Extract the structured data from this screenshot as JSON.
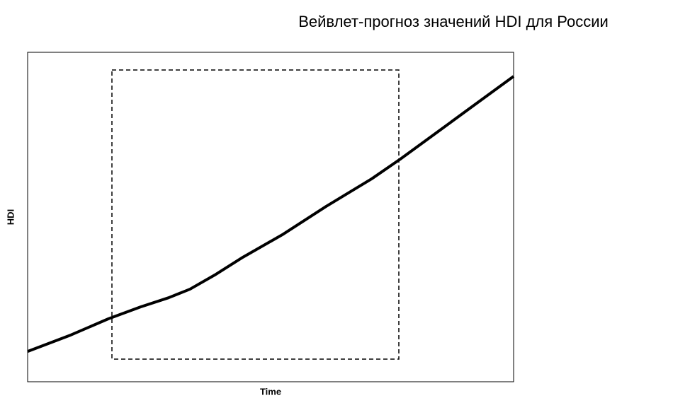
{
  "chart_data": {
    "type": "line",
    "title": "Вейвлет-прогноз значений HDI для России",
    "x_label": "Time",
    "y_label": "HDI",
    "x": [
      0,
      8.9,
      16.6,
      23.2,
      29.0,
      33.4,
      38.5,
      44.3,
      52.6,
      61.4,
      70.8,
      76.7,
      84.7,
      92.0,
      100
    ],
    "series": [
      {
        "name": "HDI",
        "color": "#000000",
        "values": [
          9.2,
          14.2,
          19.1,
          22.7,
          25.5,
          28.1,
          32.4,
          37.8,
          44.8,
          53.2,
          61.6,
          67.6,
          76.2,
          84.1,
          92.7
        ]
      }
    ],
    "xlim": [
      0,
      100
    ],
    "ylim": [
      0,
      100
    ],
    "legend": false,
    "grid": false
  }
}
